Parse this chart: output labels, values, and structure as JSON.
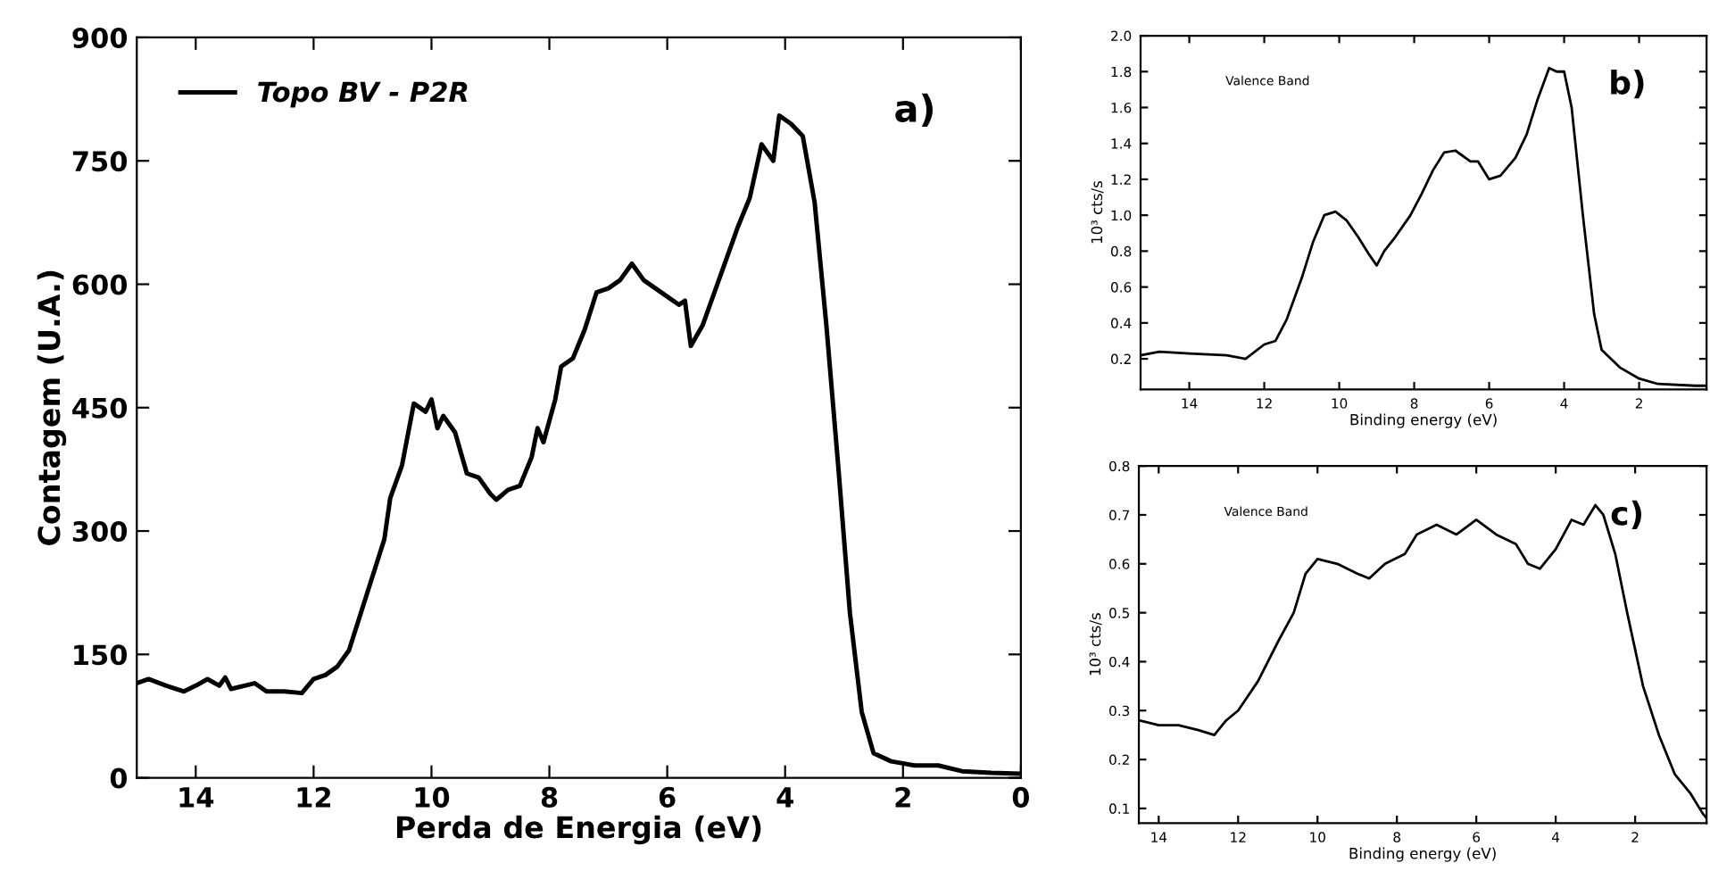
{
  "chart_data": [
    {
      "type": "line",
      "xlabel": "Perda de Energia (eV)",
      "ylabel": "Contagem (U.A.)",
      "xlim": [
        15,
        0
      ],
      "xticks": [
        14,
        12,
        10,
        8,
        6,
        4,
        2,
        0
      ],
      "ylim": [
        0,
        900
      ],
      "yticks": [
        0,
        150,
        300,
        450,
        600,
        750,
        900
      ],
      "legend": "top left",
      "annotations": [
        "a)"
      ],
      "series": [
        {
          "name": "Topo BV - P2R",
          "color": "#000000",
          "x": [
            15,
            14.8,
            14.5,
            14.2,
            14,
            13.8,
            13.6,
            13.5,
            13.4,
            13,
            12.8,
            12.5,
            12.2,
            12,
            11.8,
            11.6,
            11.4,
            11.2,
            11,
            10.8,
            10.7,
            10.5,
            10.3,
            10.1,
            10,
            9.9,
            9.8,
            9.6,
            9.4,
            9.2,
            9,
            8.9,
            8.7,
            8.5,
            8.3,
            8.2,
            8.1,
            7.9,
            7.8,
            7.6,
            7.4,
            7.2,
            7,
            6.8,
            6.6,
            6.4,
            6.2,
            6,
            5.8,
            5.7,
            5.6,
            5.4,
            5.2,
            5,
            4.8,
            4.6,
            4.4,
            4.2,
            4.1,
            3.9,
            3.7,
            3.5,
            3.3,
            3.1,
            2.9,
            2.7,
            2.5,
            2.2,
            1.8,
            1.4,
            1,
            0.5,
            0
          ],
          "values": [
            115,
            120,
            112,
            105,
            112,
            120,
            112,
            122,
            108,
            115,
            105,
            105,
            103,
            120,
            125,
            135,
            155,
            200,
            245,
            290,
            340,
            380,
            455,
            445,
            460,
            425,
            440,
            420,
            370,
            365,
            345,
            338,
            350,
            355,
            390,
            425,
            408,
            460,
            500,
            510,
            545,
            590,
            595,
            605,
            625,
            605,
            595,
            585,
            575,
            580,
            525,
            550,
            590,
            630,
            670,
            705,
            770,
            750,
            805,
            795,
            780,
            700,
            550,
            380,
            200,
            80,
            30,
            20,
            15,
            15,
            8,
            6,
            5
          ]
        }
      ]
    },
    {
      "type": "line",
      "xlabel": "Binding energy (eV)",
      "ylabel": "10³ cts/s",
      "xlim": [
        15.3,
        0.2
      ],
      "xticks": [
        14,
        12,
        10,
        8,
        6,
        4,
        2
      ],
      "ylim": [
        0.03,
        2.0
      ],
      "yticks": [
        0.2,
        0.4,
        0.6,
        0.8,
        {
          "value": 1.0,
          "label": "1.0"
        },
        1.2,
        1.4,
        1.6,
        1.8,
        {
          "value": 2.0,
          "label": "2.0"
        }
      ],
      "annotations": [
        "Valence Band",
        "b)"
      ],
      "series": [
        {
          "color": "#000000",
          "x": [
            15.3,
            14.8,
            14,
            13,
            12.5,
            12,
            11.7,
            11.4,
            11,
            10.7,
            10.4,
            10.1,
            9.8,
            9.5,
            9.2,
            9,
            8.8,
            8.5,
            8.1,
            7.8,
            7.5,
            7.2,
            6.9,
            6.5,
            6.3,
            6,
            5.7,
            5.3,
            5,
            4.7,
            4.4,
            4.2,
            4,
            3.8,
            3.5,
            3.2,
            3,
            2.5,
            2,
            1.5,
            0.5,
            0.2
          ],
          "values": [
            0.22,
            0.24,
            0.23,
            0.22,
            0.2,
            0.28,
            0.3,
            0.42,
            0.65,
            0.85,
            1.0,
            1.02,
            0.97,
            0.88,
            0.78,
            0.72,
            0.8,
            0.88,
            1.0,
            1.12,
            1.25,
            1.35,
            1.36,
            1.3,
            1.3,
            1.2,
            1.22,
            1.32,
            1.45,
            1.65,
            1.82,
            1.8,
            1.8,
            1.6,
            1.0,
            0.45,
            0.25,
            0.15,
            0.09,
            0.06,
            0.05,
            0.05
          ]
        }
      ]
    },
    {
      "type": "line",
      "xlabel": "Binding energy (eV)",
      "ylabel": "10³ cts/s",
      "xlim": [
        14.5,
        0.2
      ],
      "xticks": [
        14,
        12,
        10,
        8,
        6,
        4,
        2
      ],
      "ylim": [
        0.07,
        0.8
      ],
      "yticks": [
        0.1,
        0.2,
        0.3,
        0.4,
        0.5,
        0.6,
        0.7,
        0.8
      ],
      "annotations": [
        "Valence Band",
        "c)"
      ],
      "series": [
        {
          "color": "#000000",
          "x": [
            14.5,
            14,
            13.5,
            13,
            12.6,
            12.3,
            12,
            11.5,
            11,
            10.6,
            10.3,
            10,
            9.5,
            9,
            8.7,
            8.3,
            7.8,
            7.5,
            7,
            6.5,
            6,
            5.5,
            5,
            4.7,
            4.4,
            4,
            3.6,
            3.3,
            3,
            2.8,
            2.5,
            2.2,
            1.8,
            1.4,
            1,
            0.6,
            0.3,
            0.2
          ],
          "values": [
            0.28,
            0.27,
            0.27,
            0.26,
            0.25,
            0.28,
            0.3,
            0.36,
            0.44,
            0.5,
            0.58,
            0.61,
            0.6,
            0.58,
            0.57,
            0.6,
            0.62,
            0.66,
            0.68,
            0.66,
            0.69,
            0.66,
            0.64,
            0.6,
            0.59,
            0.63,
            0.69,
            0.68,
            0.72,
            0.7,
            0.62,
            0.5,
            0.35,
            0.25,
            0.17,
            0.13,
            0.09,
            0.08
          ]
        }
      ]
    }
  ]
}
